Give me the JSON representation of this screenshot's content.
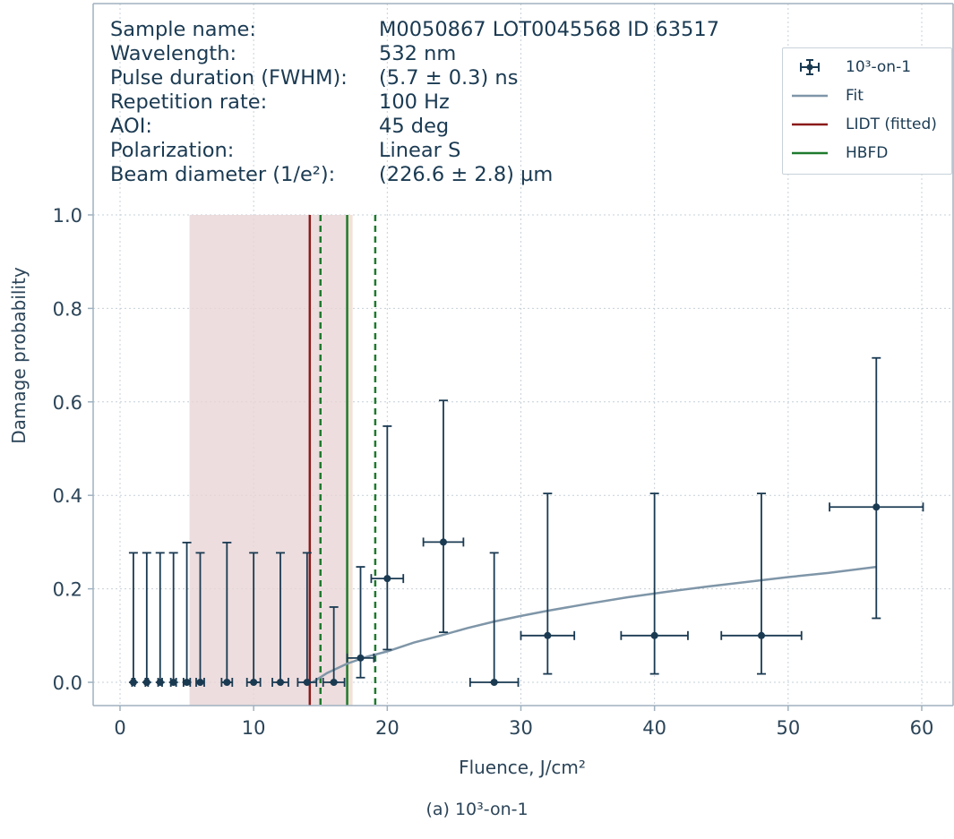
{
  "info": {
    "labels": [
      "Sample name:",
      "Wavelength:",
      "Pulse duration (FWHM):",
      "Repetition rate:",
      "AOI:",
      "Polarization:",
      "Beam diameter (1/e²):"
    ],
    "values": [
      "M0050867 LOT0045568 ID 63517",
      "532 nm",
      "(5.7 ± 0.3) ns",
      "100 Hz",
      "45 deg",
      "Linear S",
      "(226.6 ± 2.8) µm"
    ]
  },
  "legend": {
    "items": [
      {
        "label": "10³-on-1",
        "kind": "errorbar",
        "color": "#1a3a52"
      },
      {
        "label": "Fit",
        "kind": "line",
        "color": "#7f96a8"
      },
      {
        "label": "LIDT (fitted)",
        "kind": "line",
        "color": "#8b1a1a"
      },
      {
        "label": "HBFD",
        "kind": "line",
        "color": "#1e7a2e"
      }
    ]
  },
  "caption": "(a) 10³-on-1",
  "chart_data": {
    "type": "scatter",
    "xlabel": "Fluence, J/cm²",
    "ylabel": "Damage probability",
    "xlim": [
      -2,
      62
    ],
    "ylim": [
      -0.05,
      1.0
    ],
    "xticks": [
      0,
      10,
      20,
      30,
      40,
      50,
      60
    ],
    "yticks": [
      0.0,
      0.2,
      0.4,
      0.6,
      0.8,
      1.0
    ],
    "ytick_labels": [
      "0.0",
      "0.2",
      "0.4",
      "0.6",
      "0.8",
      "1.0"
    ],
    "grid": true,
    "legend_position": "top-right",
    "series": [
      {
        "name": "10³-on-1",
        "color": "#1a3a52",
        "points": [
          {
            "x": 1,
            "y": 0,
            "xerr": 0.1,
            "ylo": 0,
            "yhi": 0.277
          },
          {
            "x": 2,
            "y": 0,
            "xerr": 0.1,
            "ylo": 0,
            "yhi": 0.277
          },
          {
            "x": 3,
            "y": 0,
            "xerr": 0.15,
            "ylo": 0,
            "yhi": 0.277
          },
          {
            "x": 4,
            "y": 0,
            "xerr": 0.2,
            "ylo": 0,
            "yhi": 0.277
          },
          {
            "x": 5,
            "y": 0,
            "xerr": 0.25,
            "ylo": 0,
            "yhi": 0.299
          },
          {
            "x": 6,
            "y": 0,
            "xerr": 0.3,
            "ylo": 0,
            "yhi": 0.277
          },
          {
            "x": 8,
            "y": 0,
            "xerr": 0.4,
            "ylo": 0,
            "yhi": 0.299
          },
          {
            "x": 10,
            "y": 0,
            "xerr": 0.5,
            "ylo": 0,
            "yhi": 0.277
          },
          {
            "x": 12,
            "y": 0,
            "xerr": 0.6,
            "ylo": 0,
            "yhi": 0.277
          },
          {
            "x": 14,
            "y": 0,
            "xerr": 0.7,
            "ylo": 0,
            "yhi": 0.277
          },
          {
            "x": 16,
            "y": 0,
            "xerr": 0.8,
            "ylo": 0,
            "yhi": 0.161
          },
          {
            "x": 18,
            "y": 0.052,
            "xerr": 1.0,
            "ylo": 0.01,
            "yhi": 0.247
          },
          {
            "x": 20,
            "y": 0.222,
            "xerr": 1.2,
            "ylo": 0.07,
            "yhi": 0.548
          },
          {
            "x": 24.2,
            "y": 0.3,
            "xerr": 1.5,
            "ylo": 0.107,
            "yhi": 0.603
          },
          {
            "x": 28,
            "y": 0,
            "xerr": 1.8,
            "ylo": 0,
            "yhi": 0.277
          },
          {
            "x": 32,
            "y": 0.1,
            "xerr": 2.0,
            "ylo": 0.018,
            "yhi": 0.404
          },
          {
            "x": 40,
            "y": 0.1,
            "xerr": 2.5,
            "ylo": 0.018,
            "yhi": 0.404
          },
          {
            "x": 48,
            "y": 0.1,
            "xerr": 3.0,
            "ylo": 0.018,
            "yhi": 0.404
          },
          {
            "x": 56.6,
            "y": 0.375,
            "xerr": 3.5,
            "ylo": 0.137,
            "yhi": 0.694
          }
        ]
      },
      {
        "name": "Fit",
        "color": "#7f96a8",
        "x": [
          14.4,
          15.5,
          17,
          18.5,
          20,
          22,
          24,
          26,
          28,
          30,
          32,
          35,
          38,
          41,
          44,
          47,
          50,
          53,
          56.6
        ],
        "y": [
          0,
          0.02,
          0.04,
          0.055,
          0.066,
          0.085,
          0.1,
          0.116,
          0.13,
          0.142,
          0.153,
          0.168,
          0.182,
          0.194,
          0.205,
          0.215,
          0.225,
          0.234,
          0.247
        ]
      }
    ],
    "lidt": {
      "name": "LIDT (fitted)",
      "x": 14.2,
      "band": [
        5.2,
        17.4
      ],
      "color": "#8b1a1a",
      "band_color": "#e9d5d6"
    },
    "hbfd": {
      "name": "HBFD",
      "x": 17.0,
      "dashed": [
        15.0,
        19.1
      ],
      "color": "#1e7a2e"
    }
  }
}
